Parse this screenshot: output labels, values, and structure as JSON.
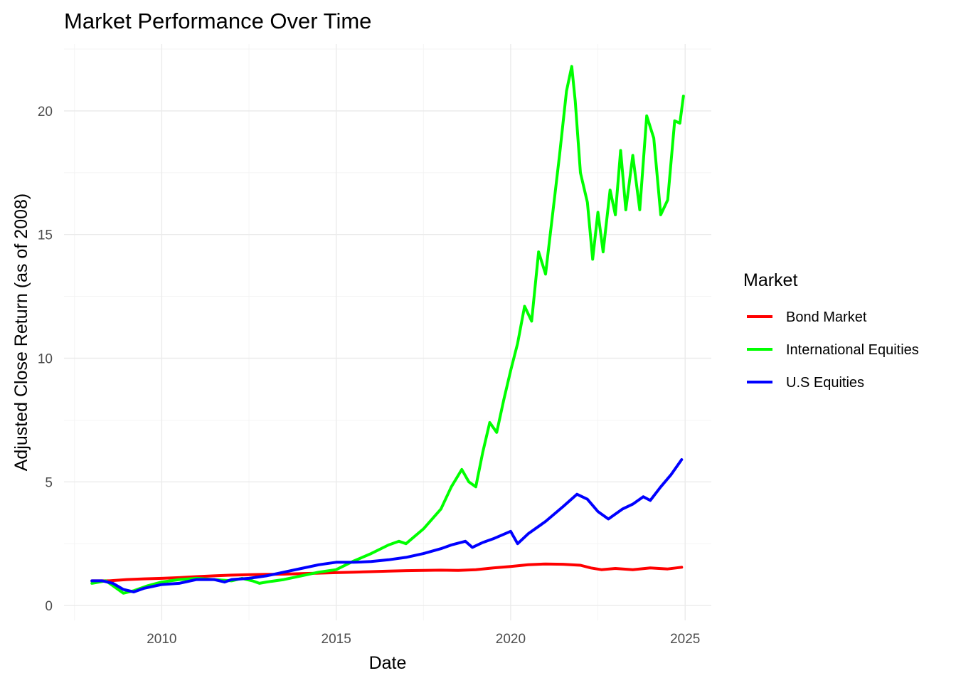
{
  "chart_data": {
    "type": "line",
    "title": "Market Performance Over Time",
    "xlabel": "Date",
    "ylabel": "Adjusted Close Return (as of 2008)",
    "xlim": [
      2007.2,
      2025.75
    ],
    "ylim": [
      -0.6,
      22.7
    ],
    "x_ticks": [
      2010,
      2015,
      2020,
      2025
    ],
    "y_ticks": [
      0,
      5,
      10,
      15,
      20
    ],
    "x_tick_labels": [
      "2010",
      "2015",
      "2020",
      "2025"
    ],
    "y_tick_labels": [
      "0",
      "5",
      "10",
      "15",
      "20"
    ],
    "grid": true,
    "legend": {
      "title": "Market",
      "position": "right"
    },
    "series": [
      {
        "name": "Bond Market",
        "color": "#ff0000",
        "x": [
          2008.0,
          2008.5,
          2009.0,
          2009.5,
          2010.0,
          2010.5,
          2011.0,
          2011.5,
          2012.0,
          2012.5,
          2013.0,
          2013.5,
          2014.0,
          2014.5,
          2015.0,
          2015.5,
          2016.0,
          2016.5,
          2017.0,
          2017.5,
          2018.0,
          2018.5,
          2019.0,
          2019.5,
          2020.0,
          2020.5,
          2021.0,
          2021.5,
          2022.0,
          2022.3,
          2022.6,
          2023.0,
          2023.5,
          2024.0,
          2024.5,
          2024.9
        ],
        "values": [
          1.0,
          1.0,
          1.05,
          1.08,
          1.1,
          1.13,
          1.17,
          1.2,
          1.23,
          1.25,
          1.26,
          1.27,
          1.29,
          1.31,
          1.33,
          1.35,
          1.37,
          1.39,
          1.41,
          1.42,
          1.43,
          1.42,
          1.45,
          1.52,
          1.58,
          1.65,
          1.68,
          1.67,
          1.63,
          1.52,
          1.45,
          1.5,
          1.45,
          1.52,
          1.48,
          1.55
        ]
      },
      {
        "name": "International Equities",
        "color": "#00ff00",
        "x": [
          2008.0,
          2008.2,
          2008.4,
          2008.6,
          2008.9,
          2009.2,
          2009.6,
          2010.0,
          2010.5,
          2011.0,
          2011.5,
          2012.0,
          2012.3,
          2012.6,
          2012.8,
          2013.0,
          2013.5,
          2014.0,
          2014.5,
          2015.0,
          2015.5,
          2016.0,
          2016.5,
          2016.8,
          2017.0,
          2017.5,
          2018.0,
          2018.3,
          2018.6,
          2018.8,
          2019.0,
          2019.2,
          2019.4,
          2019.6,
          2019.8,
          2020.0,
          2020.2,
          2020.4,
          2020.6,
          2020.8,
          2021.0,
          2021.2,
          2021.4,
          2021.6,
          2021.75,
          2021.85,
          2022.0,
          2022.2,
          2022.35,
          2022.5,
          2022.65,
          2022.85,
          2023.0,
          2023.15,
          2023.3,
          2023.5,
          2023.7,
          2023.9,
          2024.1,
          2024.3,
          2024.5,
          2024.7,
          2024.85,
          2024.95
        ],
        "values": [
          0.9,
          0.95,
          1.0,
          0.8,
          0.5,
          0.6,
          0.8,
          0.95,
          1.05,
          1.1,
          1.05,
          1.0,
          1.1,
          1.0,
          0.9,
          0.95,
          1.05,
          1.2,
          1.35,
          1.45,
          1.8,
          2.1,
          2.45,
          2.6,
          2.5,
          3.1,
          3.9,
          4.8,
          5.5,
          5.0,
          4.8,
          6.2,
          7.4,
          7.0,
          8.3,
          9.5,
          10.6,
          12.1,
          11.5,
          14.3,
          13.4,
          15.8,
          18.2,
          20.8,
          21.8,
          20.4,
          17.5,
          16.3,
          14.0,
          15.9,
          14.3,
          16.8,
          15.8,
          18.4,
          16.0,
          18.2,
          16.0,
          19.8,
          18.9,
          15.8,
          16.4,
          19.6,
          19.5,
          20.6
        ]
      },
      {
        "name": "U.S Equities",
        "color": "#0000ff",
        "x": [
          2008.0,
          2008.3,
          2008.6,
          2008.9,
          2009.2,
          2009.5,
          2010.0,
          2010.5,
          2011.0,
          2011.5,
          2011.8,
          2012.0,
          2012.5,
          2013.0,
          2013.5,
          2014.0,
          2014.5,
          2015.0,
          2015.5,
          2016.0,
          2016.5,
          2017.0,
          2017.5,
          2018.0,
          2018.3,
          2018.7,
          2018.9,
          2019.2,
          2019.5,
          2020.0,
          2020.2,
          2020.5,
          2021.0,
          2021.5,
          2021.9,
          2022.2,
          2022.5,
          2022.8,
          2023.2,
          2023.5,
          2023.8,
          2024.0,
          2024.3,
          2024.6,
          2024.9
        ],
        "values": [
          1.0,
          1.0,
          0.9,
          0.65,
          0.55,
          0.7,
          0.85,
          0.9,
          1.05,
          1.05,
          0.95,
          1.05,
          1.1,
          1.2,
          1.35,
          1.5,
          1.65,
          1.75,
          1.75,
          1.78,
          1.85,
          1.95,
          2.1,
          2.3,
          2.45,
          2.6,
          2.35,
          2.55,
          2.7,
          3.0,
          2.5,
          2.9,
          3.4,
          4.0,
          4.5,
          4.3,
          3.8,
          3.5,
          3.9,
          4.1,
          4.4,
          4.25,
          4.8,
          5.3,
          5.9
        ]
      }
    ]
  }
}
